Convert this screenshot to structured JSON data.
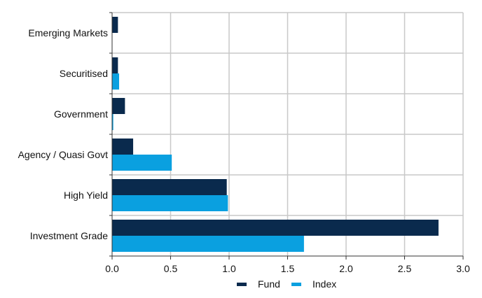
{
  "chart_data": {
    "type": "bar",
    "orientation": "horizontal",
    "categories": [
      "Emerging Markets",
      "Securitised",
      "Government",
      "Agency / Quasi Govt",
      "High Yield",
      "Investment Grade"
    ],
    "series": [
      {
        "name": "Fund",
        "color": "#0a2a4d",
        "values": [
          0.05,
          0.05,
          0.11,
          0.18,
          0.98,
          2.79
        ]
      },
      {
        "name": "Index",
        "color": "#0aa0e0",
        "values": [
          0.0,
          0.06,
          0.01,
          0.51,
          0.99,
          1.64
        ]
      }
    ],
    "xlim": [
      0,
      3.0
    ],
    "xticks": [
      "0.0",
      "0.5",
      "1.0",
      "1.5",
      "2.0",
      "2.5",
      "3.0"
    ],
    "xtick_values": [
      0,
      0.5,
      1.0,
      1.5,
      2.0,
      2.5,
      3.0
    ],
    "title": "",
    "xlabel": "",
    "ylabel": "",
    "grid": true,
    "legend": "bottom-center"
  }
}
